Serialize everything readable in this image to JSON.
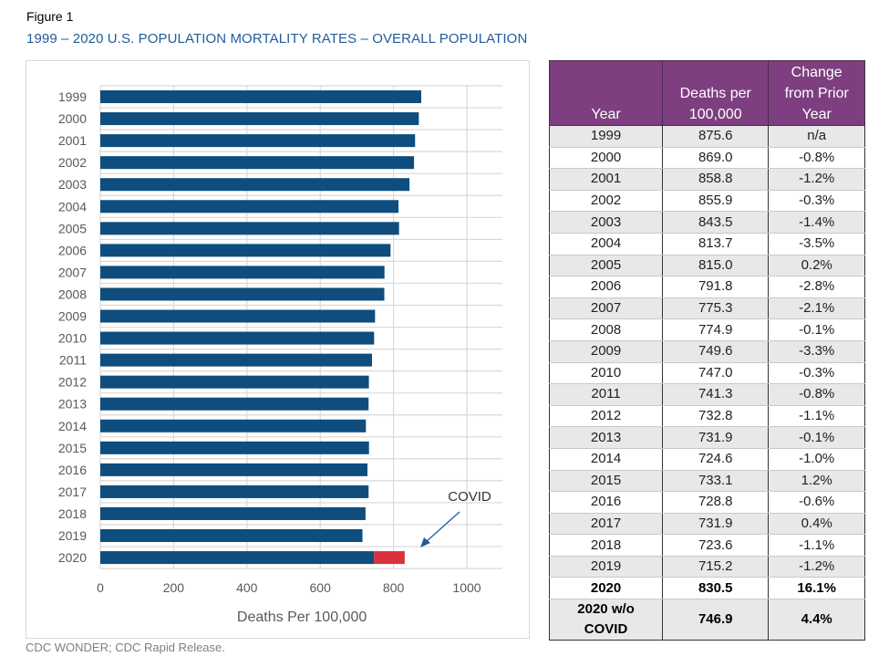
{
  "figure_label": "Figure 1",
  "figure_title": "1999 – 2020 U.S. POPULATION MORTALITY RATES – OVERALL POPULATION",
  "source": "CDC WONDER; CDC Rapid Release.",
  "colors": {
    "bar": "#0e4d7d",
    "covid_bar": "#d9323c",
    "title": "#1f5c99",
    "table_header": "#7d3f80",
    "grid": "#d9d9d9",
    "arrow": "#1f5c99"
  },
  "chart_data": {
    "type": "bar",
    "orientation": "horizontal",
    "title": "",
    "xlabel": "Deaths Per 100,000",
    "ylabel": "",
    "xlim": [
      0,
      1100
    ],
    "xticks": [
      0,
      200,
      400,
      600,
      800,
      1000
    ],
    "grid": true,
    "categories": [
      "1999",
      "2000",
      "2001",
      "2002",
      "2003",
      "2004",
      "2005",
      "2006",
      "2007",
      "2008",
      "2009",
      "2010",
      "2011",
      "2012",
      "2013",
      "2014",
      "2015",
      "2016",
      "2017",
      "2018",
      "2019",
      "2020"
    ],
    "series": [
      {
        "name": "Deaths per 100,000",
        "values": [
          875.6,
          869.0,
          858.8,
          855.9,
          843.5,
          813.7,
          815.0,
          791.8,
          775.3,
          774.9,
          749.6,
          747.0,
          741.3,
          732.8,
          731.9,
          724.6,
          733.1,
          728.8,
          731.9,
          723.6,
          715.2,
          746.9
        ]
      },
      {
        "name": "COVID",
        "values": [
          0,
          0,
          0,
          0,
          0,
          0,
          0,
          0,
          0,
          0,
          0,
          0,
          0,
          0,
          0,
          0,
          0,
          0,
          0,
          0,
          0,
          83.6
        ]
      }
    ],
    "stacked": true,
    "annotations": [
      {
        "text": "COVID",
        "points_to": "2020",
        "arrow": true
      }
    ]
  },
  "table": {
    "headers": [
      "Year",
      "Deaths per 100,000",
      "Change from Prior Year"
    ],
    "header_lines": [
      [
        "Year"
      ],
      [
        "Deaths per",
        "100,000"
      ],
      [
        "Change",
        "from Prior",
        "Year"
      ]
    ],
    "rows": [
      [
        "1999",
        "875.6",
        "n/a"
      ],
      [
        "2000",
        "869.0",
        "-0.8%"
      ],
      [
        "2001",
        "858.8",
        "-1.2%"
      ],
      [
        "2002",
        "855.9",
        "-0.3%"
      ],
      [
        "2003",
        "843.5",
        "-1.4%"
      ],
      [
        "2004",
        "813.7",
        "-3.5%"
      ],
      [
        "2005",
        "815.0",
        "0.2%"
      ],
      [
        "2006",
        "791.8",
        "-2.8%"
      ],
      [
        "2007",
        "775.3",
        "-2.1%"
      ],
      [
        "2008",
        "774.9",
        "-0.1%"
      ],
      [
        "2009",
        "749.6",
        "-3.3%"
      ],
      [
        "2010",
        "747.0",
        "-0.3%"
      ],
      [
        "2011",
        "741.3",
        "-0.8%"
      ],
      [
        "2012",
        "732.8",
        "-1.1%"
      ],
      [
        "2013",
        "731.9",
        "-0.1%"
      ],
      [
        "2014",
        "724.6",
        "-1.0%"
      ],
      [
        "2015",
        "733.1",
        "1.2%"
      ],
      [
        "2016",
        "728.8",
        "-0.6%"
      ],
      [
        "2017",
        "731.9",
        "0.4%"
      ],
      [
        "2018",
        "723.6",
        "-1.1%"
      ],
      [
        "2019",
        "715.2",
        "-1.2%"
      ],
      [
        "2020",
        "830.5",
        "16.1%"
      ]
    ],
    "final_row": [
      "2020 w/o COVID",
      "746.9",
      "4.4%"
    ],
    "final_row_lines": [
      "2020 w/o",
      "COVID"
    ]
  }
}
